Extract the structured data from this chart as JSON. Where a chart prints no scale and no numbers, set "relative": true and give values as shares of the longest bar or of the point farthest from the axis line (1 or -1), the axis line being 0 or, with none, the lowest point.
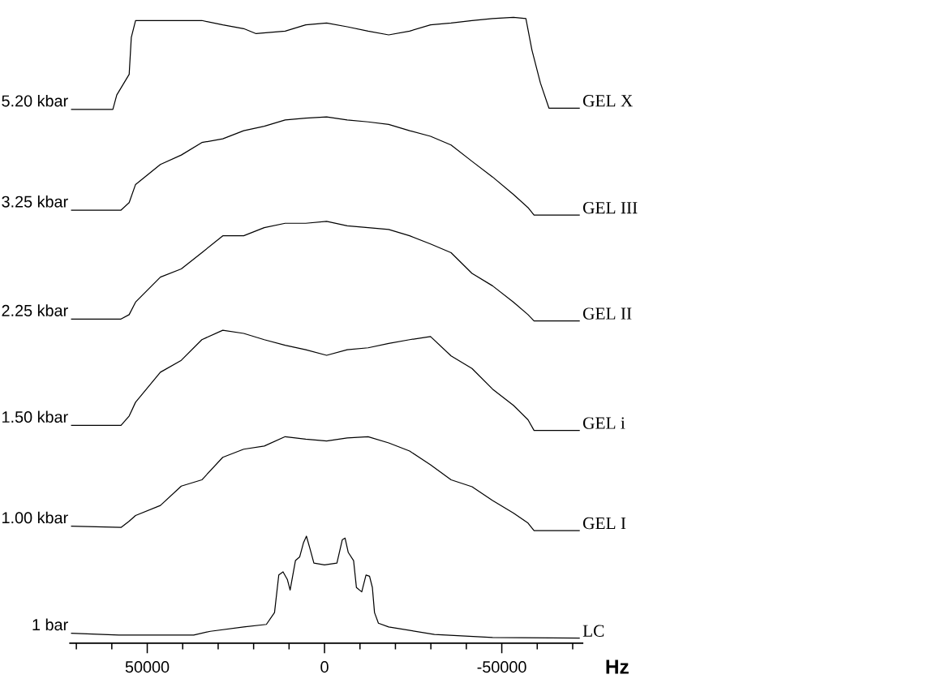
{
  "chart_data": {
    "type": "line",
    "relative": true,
    "xlabel": "Hz",
    "xlim": [
      72000,
      -73000
    ],
    "xticks": [
      {
        "value": 70000,
        "label": null
      },
      {
        "value": 60000,
        "label": null
      },
      50000,
      {
        "value": 40000,
        "label": null
      },
      {
        "value": 30000,
        "label": null
      },
      {
        "value": 20000,
        "label": null
      },
      {
        "value": 10000,
        "label": null
      },
      0,
      {
        "value": -10000,
        "label": null
      },
      {
        "value": -20000,
        "label": null
      },
      {
        "value": -30000,
        "label": null
      },
      {
        "value": -40000,
        "label": null
      },
      -50000,
      {
        "value": -60000,
        "label": null
      },
      {
        "value": -70000,
        "label": null
      }
    ],
    "x": [
      71500,
      57400,
      55100,
      53300,
      46300,
      40400,
      34600,
      28700,
      22800,
      17000,
      11100,
      5300,
      -600,
      -6400,
      -12300,
      -18100,
      -24000,
      -29900,
      -35700,
      -41600,
      -47400,
      -53300,
      -57400,
      -59100,
      -72000
    ],
    "series": [
      {
        "name": "5.20 kbar",
        "color": "#000000",
        "x": [
          71500,
          59700,
          58600,
          55100,
          54500,
          53300,
          46300,
          34600,
          28700,
          22800,
          19300,
          11100,
          5300,
          -600,
          -6400,
          -12300,
          -18100,
          -24000,
          -29900,
          -35700,
          -41600,
          -47400,
          -53300,
          -56800,
          -58500,
          -60900,
          -63300,
          -72000
        ],
        "values": [
          0.853,
          0.853,
          0.876,
          0.909,
          0.968,
          0.995,
          0.995,
          0.995,
          0.988,
          0.982,
          0.974,
          0.978,
          0.988,
          0.991,
          0.985,
          0.978,
          0.972,
          0.978,
          0.988,
          0.991,
          0.995,
          0.998,
          1.0,
          0.998,
          0.948,
          0.895,
          0.855,
          0.855
        ]
      },
      {
        "name": "3.25 kbar",
        "color": "#000000",
        "values": [
          0.692,
          0.692,
          0.704,
          0.733,
          0.765,
          0.78,
          0.8,
          0.806,
          0.819,
          0.826,
          0.836,
          0.839,
          0.841,
          0.836,
          0.833,
          0.829,
          0.819,
          0.81,
          0.796,
          0.77,
          0.745,
          0.717,
          0.696,
          0.684,
          0.684
        ]
      },
      {
        "name": "2.25 kbar",
        "color": "#000000",
        "values": [
          0.518,
          0.518,
          0.525,
          0.545,
          0.585,
          0.598,
          0.624,
          0.651,
          0.651,
          0.664,
          0.671,
          0.671,
          0.674,
          0.667,
          0.664,
          0.661,
          0.651,
          0.638,
          0.624,
          0.591,
          0.571,
          0.545,
          0.525,
          0.515,
          0.515
        ]
      },
      {
        "name": "1.50 kbar",
        "color": "#000000",
        "values": [
          0.348,
          0.348,
          0.363,
          0.385,
          0.433,
          0.452,
          0.485,
          0.5,
          0.495,
          0.485,
          0.476,
          0.469,
          0.46,
          0.469,
          0.472,
          0.479,
          0.485,
          0.49,
          0.459,
          0.439,
          0.406,
          0.38,
          0.357,
          0.34,
          0.34
        ]
      },
      {
        "name": "1.00 kbar",
        "color": "#000000",
        "values": [
          0.187,
          0.185,
          0.195,
          0.204,
          0.22,
          0.251,
          0.261,
          0.297,
          0.31,
          0.315,
          0.33,
          0.326,
          0.323,
          0.328,
          0.33,
          0.32,
          0.307,
          0.285,
          0.261,
          0.25,
          0.228,
          0.208,
          0.192,
          0.18,
          0.18
        ]
      },
      {
        "name": "1 bar",
        "color": "#000000",
        "x": [
          71500,
          58000,
          36900,
          32200,
          22800,
          16400,
          14100,
          12900,
          11700,
          10500,
          9700,
          8200,
          7000,
          5900,
          5100,
          4100,
          3000,
          0,
          -3500,
          -5000,
          -5800,
          -6700,
          -8200,
          -9000,
          -10500,
          -11700,
          -12700,
          -13500,
          -14100,
          -15200,
          -18100,
          -31000,
          -47400,
          -72000
        ],
        "values": [
          0.016,
          0.013,
          0.013,
          0.019,
          0.026,
          0.03,
          0.049,
          0.109,
          0.114,
          0.102,
          0.085,
          0.132,
          0.138,
          0.161,
          0.171,
          0.151,
          0.128,
          0.125,
          0.128,
          0.165,
          0.168,
          0.145,
          0.132,
          0.089,
          0.082,
          0.109,
          0.107,
          0.089,
          0.049,
          0.032,
          0.026,
          0.014,
          0.009,
          0.008
        ]
      }
    ],
    "annotations": [
      "GEL X",
      "GEL III",
      "GEL II",
      "GEL i",
      "GEL I",
      "LC"
    ]
  }
}
